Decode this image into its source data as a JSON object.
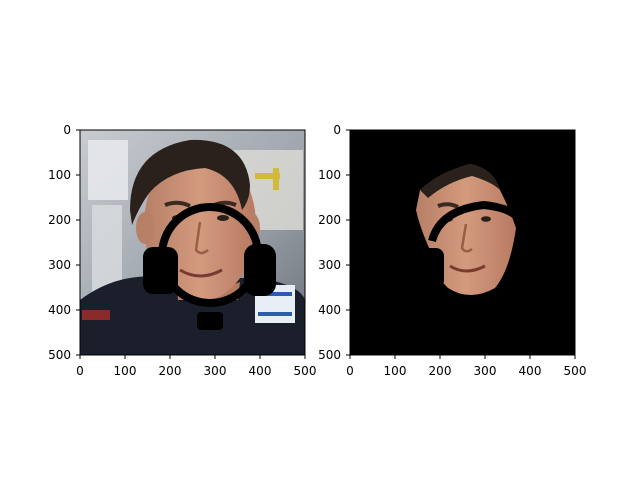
{
  "figure": {
    "panels": [
      {
        "image": "astronaut-face-with-headset-overlay",
        "x_ticks": [
          "0",
          "100",
          "200",
          "300",
          "400",
          "500"
        ],
        "y_ticks": [
          "0",
          "100",
          "200",
          "300",
          "400",
          "500"
        ]
      },
      {
        "image": "masked-face-on-black-background",
        "x_ticks": [
          "0",
          "100",
          "200",
          "300",
          "400",
          "500"
        ],
        "y_ticks": [
          "0",
          "100",
          "200",
          "300",
          "400",
          "500"
        ]
      }
    ],
    "colors": {
      "background": "#ffffff",
      "axis": "#000000",
      "mask": "#000000",
      "skin": "#c98f73",
      "hair": "#2a211c",
      "suit": "#1a1f2b"
    }
  }
}
